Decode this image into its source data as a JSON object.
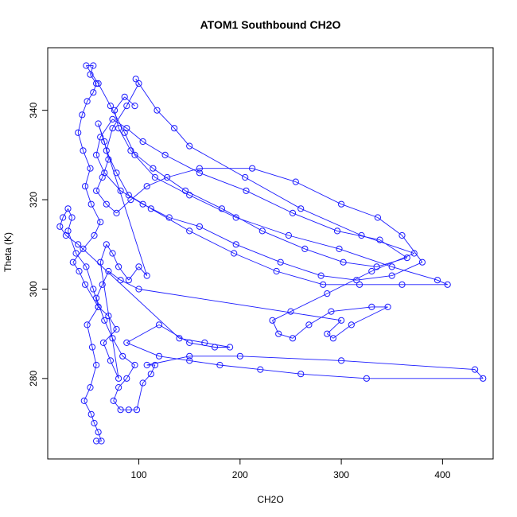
{
  "chart_data": {
    "type": "scatter",
    "title": "ATOM1 Southbound CH2O",
    "xlabel": "CH2O",
    "ylabel": "Theta (K)",
    "xlim": [
      10,
      450
    ],
    "ylim": [
      262,
      354
    ],
    "xticks": [
      100,
      200,
      300,
      400
    ],
    "yticks": [
      280,
      300,
      320,
      340
    ],
    "grid": false,
    "legend": "none",
    "marker": "open-circle",
    "connect_points": true,
    "colors": {
      "series": "#1a1aff",
      "axis": "#000000",
      "background": "#ffffff"
    },
    "series": [
      {
        "values": [
          [
            58,
            266
          ],
          [
            63,
            266
          ],
          [
            60,
            268
          ],
          [
            56,
            270
          ],
          [
            53,
            272
          ],
          [
            46,
            275
          ],
          [
            52,
            278
          ],
          [
            58,
            283
          ],
          [
            54,
            287
          ],
          [
            49,
            292
          ],
          [
            60,
            296
          ],
          [
            47,
            301
          ],
          [
            41,
            304
          ],
          [
            35,
            306
          ],
          [
            45,
            309
          ],
          [
            56,
            312
          ],
          [
            62,
            315
          ],
          [
            53,
            319
          ],
          [
            47,
            323
          ],
          [
            52,
            327
          ],
          [
            45,
            331
          ],
          [
            40,
            335
          ],
          [
            44,
            339
          ],
          [
            49,
            342
          ],
          [
            55,
            344
          ],
          [
            58,
            346
          ],
          [
            52,
            348
          ],
          [
            55,
            350
          ],
          [
            48,
            350
          ],
          [
            60,
            346
          ],
          [
            72,
            341
          ],
          [
            86,
            335
          ],
          [
            96,
            330
          ],
          [
            116,
            325
          ],
          [
            150,
            321
          ],
          [
            196,
            316
          ],
          [
            248,
            312
          ],
          [
            298,
            309
          ],
          [
            350,
            305
          ],
          [
            395,
            302
          ],
          [
            405,
            301
          ],
          [
            360,
            301
          ],
          [
            318,
            301
          ],
          [
            282,
            301
          ],
          [
            236,
            304
          ],
          [
            194,
            308
          ],
          [
            150,
            313
          ],
          [
            112,
            318
          ],
          [
            90,
            321
          ],
          [
            78,
            326
          ],
          [
            68,
            331
          ],
          [
            74,
            336
          ],
          [
            88,
            341
          ],
          [
            100,
            346
          ],
          [
            97,
            347
          ],
          [
            118,
            340
          ],
          [
            135,
            336
          ],
          [
            150,
            332
          ],
          [
            205,
            325
          ],
          [
            260,
            318
          ],
          [
            320,
            312
          ],
          [
            372,
            308
          ],
          [
            330,
            304
          ],
          [
            286,
            299
          ],
          [
            250,
            295
          ],
          [
            232,
            293
          ],
          [
            238,
            290
          ],
          [
            252,
            289
          ],
          [
            268,
            292
          ],
          [
            290,
            295
          ],
          [
            330,
            296
          ],
          [
            346,
            296
          ],
          [
            310,
            292
          ],
          [
            292,
            289
          ],
          [
            286,
            290
          ],
          [
            300,
            293
          ],
          [
            100,
            300
          ],
          [
            82,
            302
          ],
          [
            70,
            304
          ],
          [
            64,
            301
          ],
          [
            58,
            298
          ],
          [
            66,
            293
          ],
          [
            74,
            289
          ],
          [
            84,
            285
          ],
          [
            96,
            283
          ],
          [
            88,
            280
          ],
          [
            80,
            278
          ],
          [
            75,
            275
          ],
          [
            82,
            273
          ],
          [
            90,
            273
          ],
          [
            98,
            273
          ],
          [
            104,
            279
          ],
          [
            112,
            281
          ],
          [
            116,
            283
          ],
          [
            108,
            283
          ],
          [
            150,
            285
          ],
          [
            200,
            285
          ],
          [
            300,
            284
          ],
          [
            432,
            282
          ],
          [
            440,
            280
          ],
          [
            325,
            280
          ],
          [
            260,
            281
          ],
          [
            220,
            282
          ],
          [
            180,
            283
          ],
          [
            150,
            284
          ],
          [
            120,
            285
          ],
          [
            88,
            288
          ],
          [
            120,
            292
          ],
          [
            150,
            288
          ],
          [
            175,
            287
          ],
          [
            190,
            287
          ],
          [
            165,
            288
          ],
          [
            140,
            289
          ],
          [
            40,
            310
          ],
          [
            28,
            312
          ],
          [
            22,
            314
          ],
          [
            25,
            316
          ],
          [
            30,
            318
          ],
          [
            34,
            316
          ],
          [
            30,
            313
          ],
          [
            38,
            308
          ],
          [
            48,
            305
          ],
          [
            55,
            300
          ],
          [
            60,
            296
          ],
          [
            70,
            294
          ],
          [
            78,
            291
          ],
          [
            65,
            288
          ],
          [
            72,
            284
          ],
          [
            80,
            280
          ],
          [
            62,
            306
          ],
          [
            68,
            310
          ],
          [
            74,
            308
          ],
          [
            80,
            305
          ],
          [
            90,
            302
          ],
          [
            100,
            305
          ],
          [
            108,
            303
          ],
          [
            60,
            337
          ],
          [
            66,
            333
          ],
          [
            70,
            329
          ],
          [
            64,
            325
          ],
          [
            58,
            322
          ],
          [
            68,
            319
          ],
          [
            78,
            317
          ],
          [
            92,
            320
          ],
          [
            108,
            323
          ],
          [
            128,
            325
          ],
          [
            160,
            327
          ],
          [
            212,
            327
          ],
          [
            255,
            324
          ],
          [
            300,
            319
          ],
          [
            336,
            316
          ],
          [
            360,
            312
          ],
          [
            380,
            306
          ],
          [
            350,
            303
          ],
          [
            315,
            302
          ],
          [
            280,
            303
          ],
          [
            240,
            306
          ],
          [
            196,
            310
          ],
          [
            160,
            314
          ],
          [
            130,
            316
          ],
          [
            104,
            319
          ],
          [
            82,
            322
          ],
          [
            66,
            326
          ],
          [
            58,
            330
          ],
          [
            62,
            334
          ],
          [
            74,
            338
          ],
          [
            88,
            336
          ],
          [
            104,
            333
          ],
          [
            126,
            330
          ],
          [
            160,
            326
          ],
          [
            206,
            322
          ],
          [
            252,
            317
          ],
          [
            296,
            313
          ],
          [
            338,
            311
          ],
          [
            365,
            307
          ],
          [
            335,
            305
          ],
          [
            302,
            306
          ],
          [
            264,
            309
          ],
          [
            222,
            313
          ],
          [
            182,
            318
          ],
          [
            146,
            322
          ],
          [
            114,
            327
          ],
          [
            92,
            331
          ],
          [
            80,
            336
          ],
          [
            76,
            340
          ],
          [
            86,
            343
          ],
          [
            96,
            341
          ]
        ]
      }
    ]
  }
}
